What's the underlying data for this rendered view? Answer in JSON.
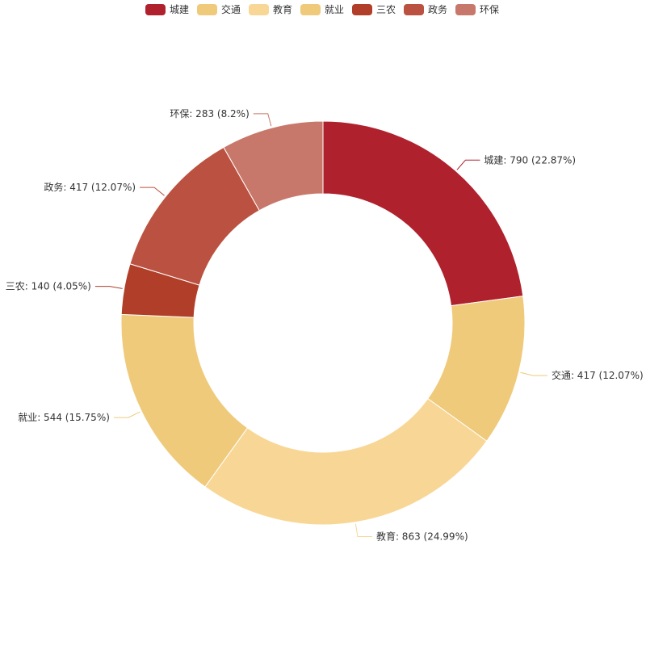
{
  "chart_data": {
    "type": "pie",
    "donut": true,
    "title": "",
    "legend_position": "top-center",
    "slices": [
      {
        "name": "城建",
        "value": 790,
        "percent": "22.87%",
        "color": "#b0212e"
      },
      {
        "name": "交通",
        "value": 417,
        "percent": "12.07%",
        "color": "#efca7b"
      },
      {
        "name": "教育",
        "value": 863,
        "percent": "24.99%",
        "color": "#f8d796"
      },
      {
        "name": "就业",
        "value": 544,
        "percent": "15.75%",
        "color": "#efca7b"
      },
      {
        "name": "三农",
        "value": 140,
        "percent": "4.05%",
        "color": "#b13e29"
      },
      {
        "name": "政务",
        "value": 417,
        "percent": "12.07%",
        "color": "#bb5241"
      },
      {
        "name": "环保",
        "value": 283,
        "percent": "8.2%",
        "color": "#c8786a"
      }
    ]
  }
}
